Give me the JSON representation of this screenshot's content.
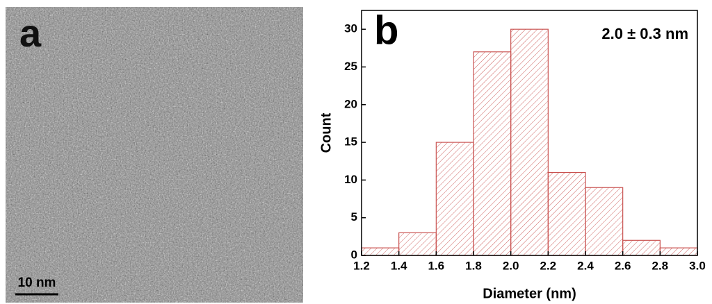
{
  "panel_a": {
    "label": "a",
    "scale_bar": "10 nm"
  },
  "chart_data": {
    "type": "histogram",
    "panel_label": "b",
    "annotation": "2.0 ± 0.3 nm",
    "xlabel": "Diameter (nm)",
    "ylabel": "Count",
    "color": "#c9514f",
    "bins": [
      1.2,
      1.4,
      1.6,
      1.8,
      2.0,
      2.2,
      2.4,
      2.6,
      2.8,
      3.0
    ],
    "values": [
      1,
      3,
      15,
      27,
      30,
      11,
      9,
      2,
      1
    ],
    "xlim": [
      1.2,
      3.0
    ],
    "xticks": [
      1.2,
      1.4,
      1.6,
      1.8,
      {
        "value": 2,
        "label": "2.0"
      },
      2.2,
      2.4,
      2.6,
      2.8,
      {
        "value": 3,
        "label": "3.0"
      }
    ],
    "ylim": [
      0,
      32.5
    ],
    "yticks": [
      0,
      5,
      10,
      15,
      20,
      25,
      30
    ]
  }
}
